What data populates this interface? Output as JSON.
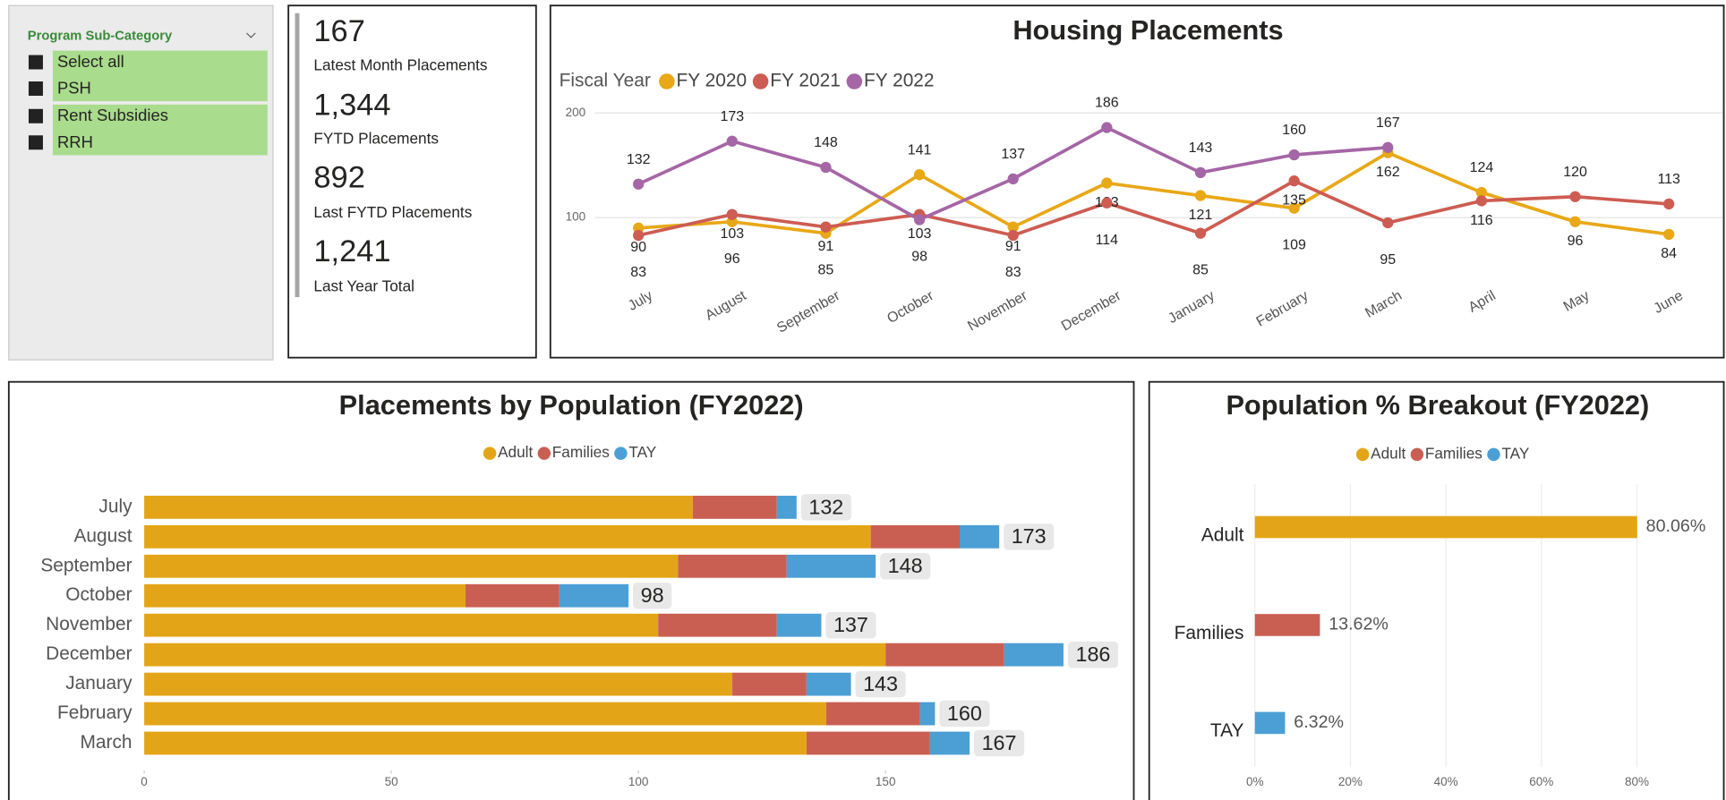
{
  "slicer": {
    "title": "Program Sub-Category",
    "items": [
      "Select all",
      "PSH",
      "Rent Subsidies",
      "RRH"
    ]
  },
  "kpis": [
    {
      "value": "167",
      "label": "Latest Month Placements"
    },
    {
      "value": "1,344",
      "label": "FYTD Placements"
    },
    {
      "value": "892",
      "label": "Last FYTD Placements"
    },
    {
      "value": "1,241",
      "label": "Last Year Total"
    }
  ],
  "chart_data": [
    {
      "type": "line",
      "title": "Housing Placements",
      "legend_title": "Fiscal Year",
      "categories": [
        "July",
        "August",
        "September",
        "October",
        "November",
        "December",
        "January",
        "February",
        "March",
        "April",
        "May",
        "June"
      ],
      "series": [
        {
          "name": "FY 2020",
          "color": "#e8a817",
          "values": [
            90,
            96,
            85,
            141,
            91,
            133,
            121,
            109,
            162,
            124,
            96,
            84
          ]
        },
        {
          "name": "FY 2021",
          "color": "#cd5c52",
          "values": [
            83,
            103,
            91,
            103,
            83,
            114,
            85,
            135,
            95,
            116,
            120,
            113
          ]
        },
        {
          "name": "FY 2022",
          "color": "#a566a5",
          "values": [
            132,
            173,
            148,
            98,
            137,
            186,
            143,
            160,
            167,
            null,
            null,
            null
          ]
        }
      ],
      "ylim": [
        45,
        208
      ],
      "yticks": [
        100,
        200
      ],
      "grid": true
    },
    {
      "type": "stacked_bar",
      "orientation": "horizontal",
      "title": "Placements by Population (FY2022)",
      "categories": [
        "July",
        "August",
        "September",
        "October",
        "November",
        "December",
        "January",
        "February",
        "March"
      ],
      "series": [
        {
          "name": "Adult",
          "color": "#e3a517",
          "values": [
            111,
            147,
            108,
            65,
            104,
            150,
            119,
            138,
            134
          ]
        },
        {
          "name": "Families",
          "color": "#c95f52",
          "values": [
            17,
            18,
            22,
            19,
            24,
            24,
            15,
            19,
            25
          ]
        },
        {
          "name": "TAY",
          "color": "#4b9fd5",
          "values": [
            4,
            8,
            18,
            14,
            9,
            12,
            9,
            3,
            8
          ]
        }
      ],
      "totals": [
        132,
        173,
        148,
        98,
        137,
        186,
        143,
        160,
        167
      ],
      "xlim": [
        0,
        198
      ],
      "xticks": [
        0,
        50,
        100,
        150
      ]
    },
    {
      "type": "bar",
      "orientation": "horizontal",
      "title": "Population % Breakout (FY2022)",
      "categories": [
        "Adult",
        "Families",
        "TAY"
      ],
      "colors": [
        "#e3a517",
        "#c95f52",
        "#4b9fd5"
      ],
      "values": [
        80.06,
        13.62,
        6.32
      ],
      "value_labels": [
        "80.06%",
        "13.62%",
        "6.32%"
      ],
      "xlim": [
        0,
        97.5
      ],
      "xticks": [
        {
          "value": 0,
          "label": "0%"
        },
        {
          "value": 20,
          "label": "20%"
        },
        {
          "value": 40,
          "label": "40%"
        },
        {
          "value": 60,
          "label": "60%"
        },
        {
          "value": 80,
          "label": "80%"
        }
      ],
      "grid": true
    }
  ]
}
